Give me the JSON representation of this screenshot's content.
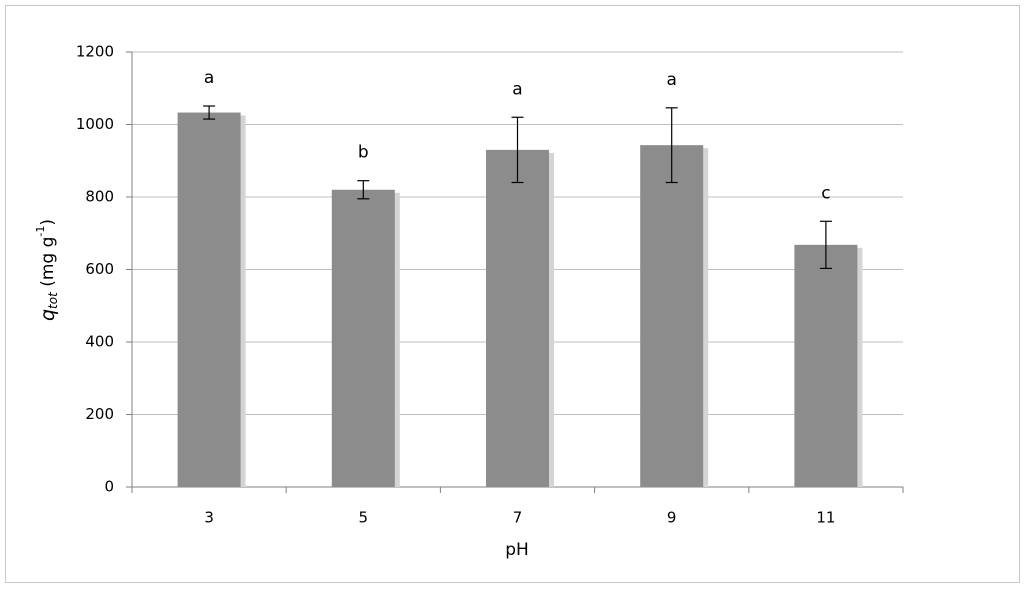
{
  "chart_data": {
    "type": "bar",
    "categories": [
      "3",
      "5",
      "7",
      "9",
      "11"
    ],
    "values": [
      1033,
      820,
      930,
      943,
      668
    ],
    "errors": [
      18,
      25,
      90,
      103,
      65
    ],
    "value_annotations": [
      "a",
      "b",
      "a",
      "a",
      "c"
    ],
    "color": "#8c8c8c",
    "x_label": "pH",
    "y_label_parts": [
      "q",
      "tot",
      " (mg g",
      "-1",
      ")"
    ],
    "ylim": [
      0,
      1200
    ],
    "yticks": [
      0,
      200,
      400,
      600,
      800,
      1000,
      1200
    ],
    "grid": true
  }
}
